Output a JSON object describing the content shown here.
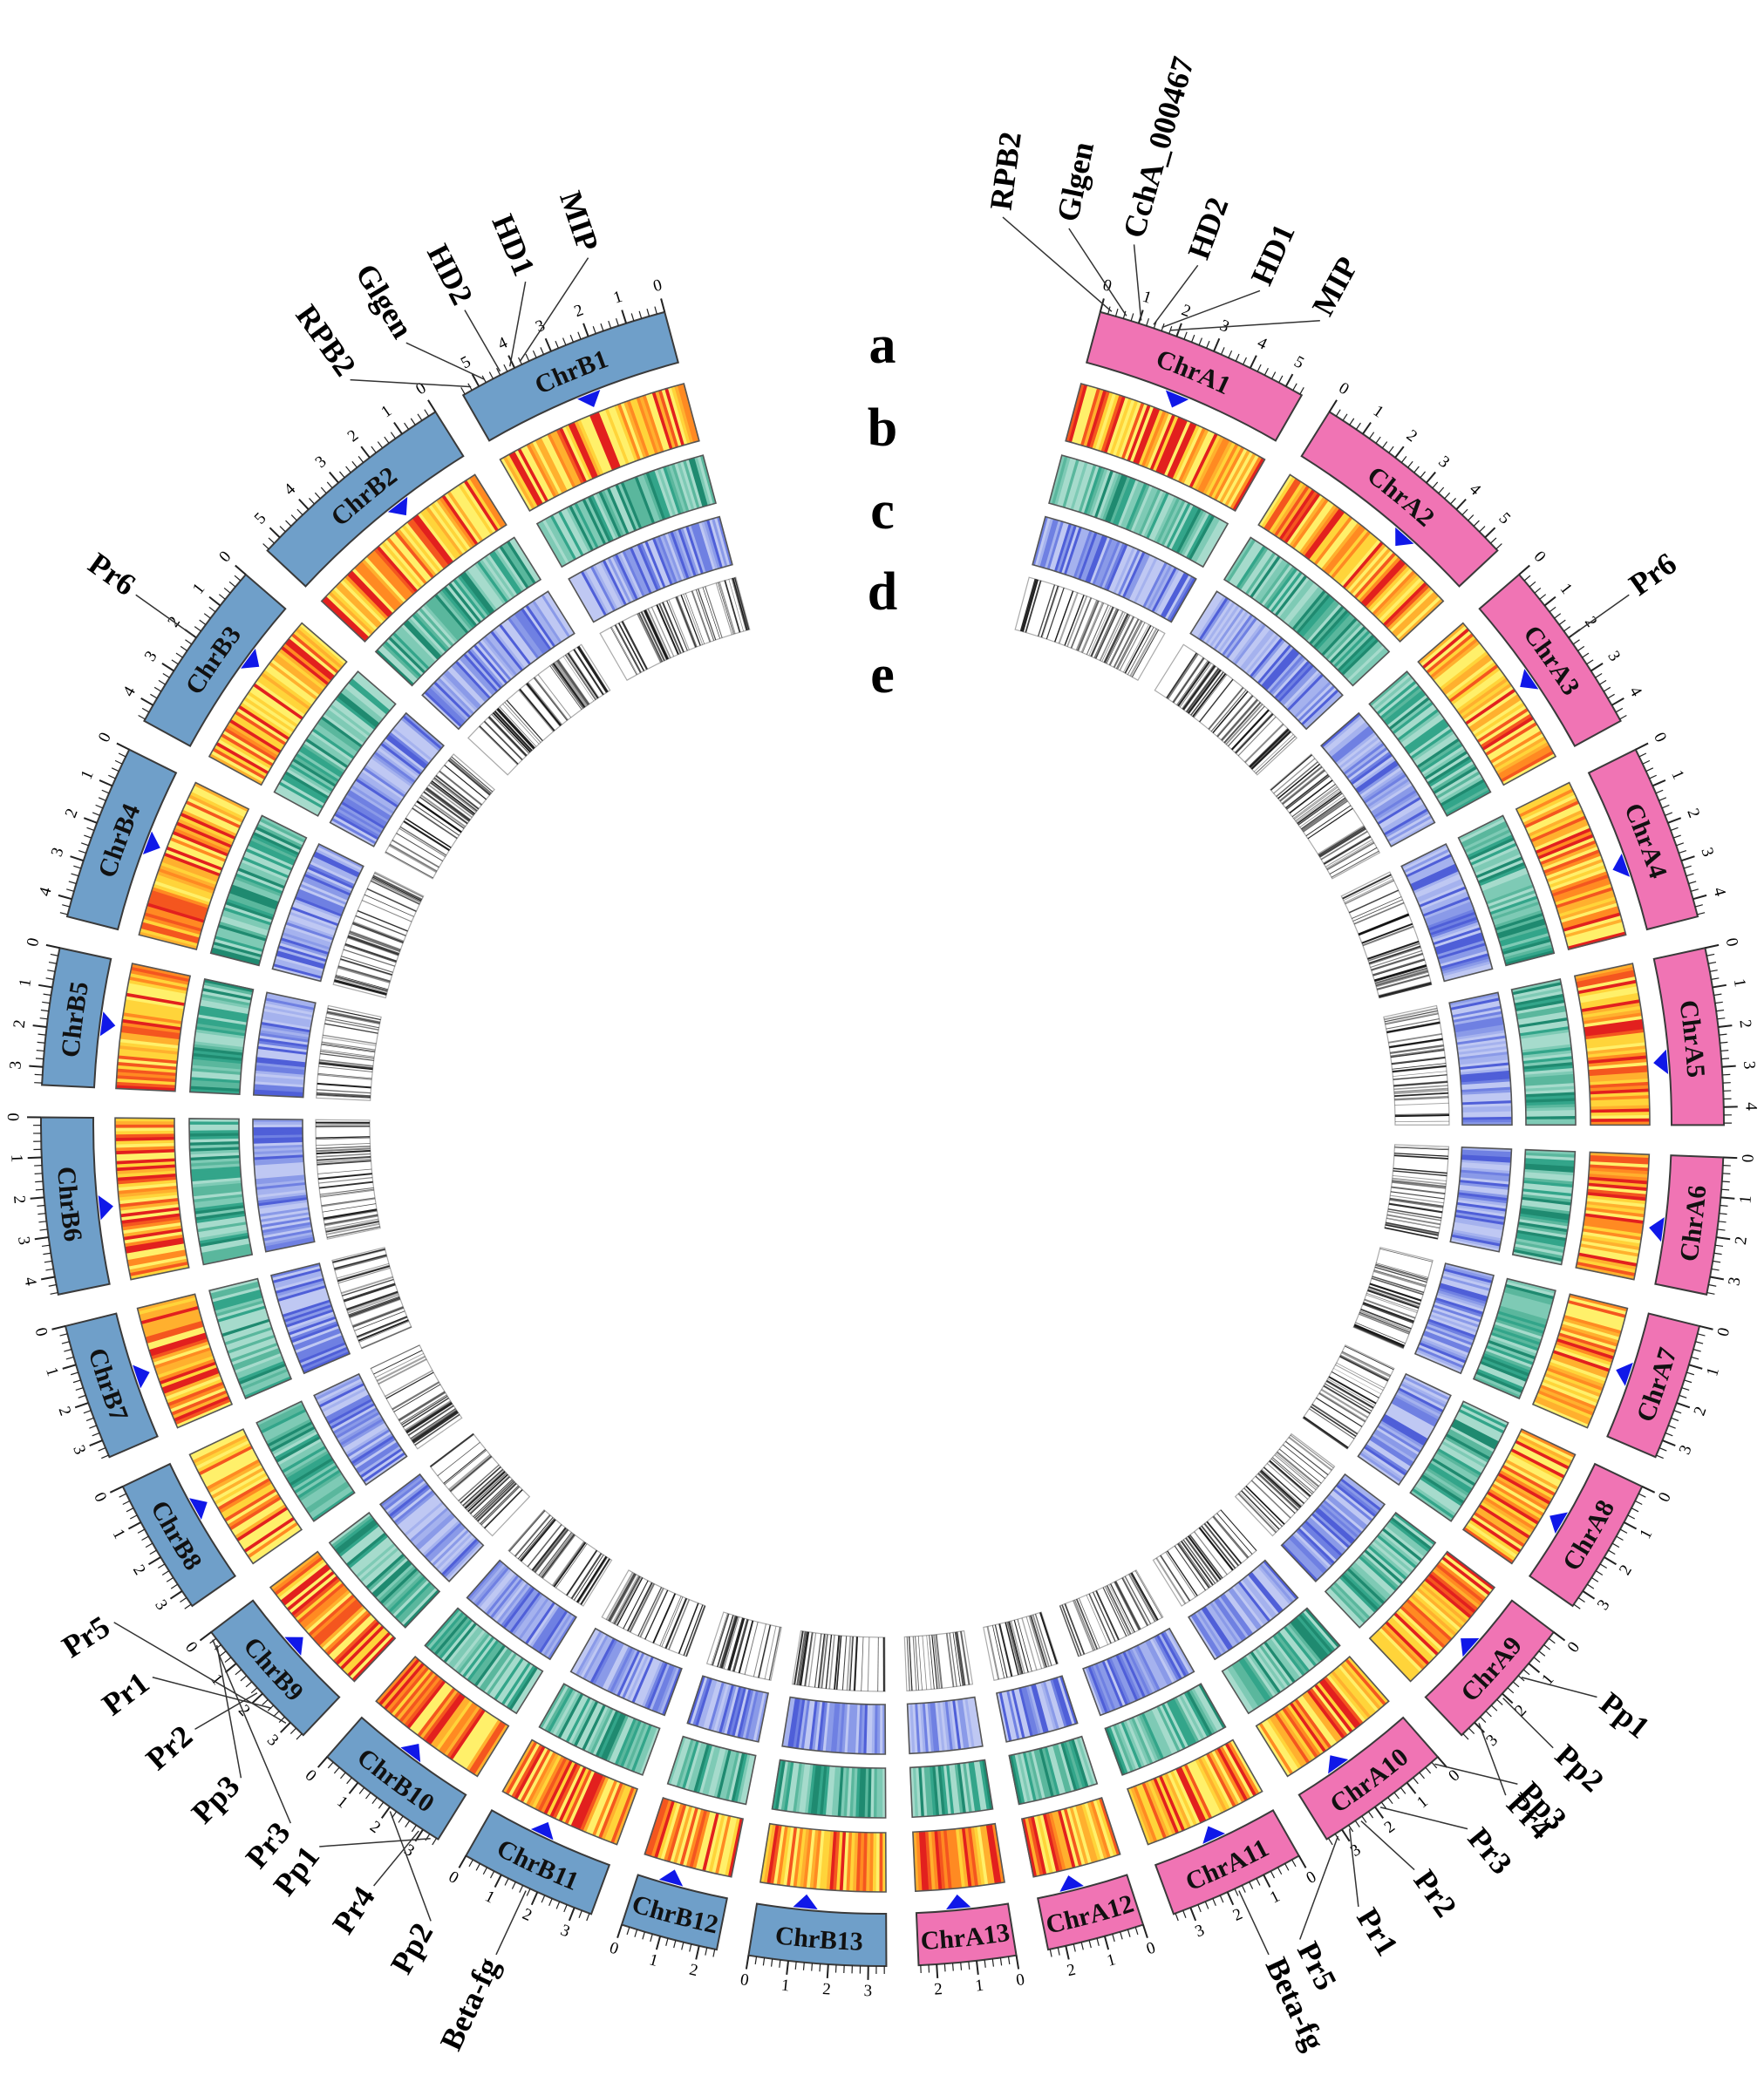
{
  "figure": {
    "description_label": "Circos plot of two subgenomes (A, B)",
    "track_letters": [
      "a",
      "b",
      "c",
      "d",
      "e"
    ],
    "colors": {
      "subgenome_A": "#f074b4",
      "subgenome_B": "#6f9fc9",
      "chr_outline": "#3a3a3a",
      "gc_track": "#33a58a",
      "gene_density_track": "#7f8fe2",
      "te_track": "#111111",
      "centromere_marker": "#1018e8",
      "heat_low": "#ffe36a",
      "heat_high": "#e2201e"
    }
  },
  "chromosomes": [
    {
      "name": "ChrA1",
      "group": "A",
      "ticks": [
        "0",
        "1",
        "2",
        "3",
        "4",
        "5"
      ]
    },
    {
      "name": "ChrA2",
      "group": "A",
      "ticks": [
        "0",
        "1",
        "2",
        "3",
        "4",
        "5"
      ]
    },
    {
      "name": "ChrA3",
      "group": "A",
      "ticks": [
        "0",
        "1",
        "2",
        "3",
        "4"
      ]
    },
    {
      "name": "ChrA4",
      "group": "A",
      "ticks": [
        "0",
        "1",
        "2",
        "3",
        "4"
      ]
    },
    {
      "name": "ChrA5",
      "group": "A",
      "ticks": [
        "0",
        "1",
        "2",
        "3",
        "4"
      ]
    },
    {
      "name": "ChrA6",
      "group": "A",
      "ticks": [
        "0",
        "1",
        "2",
        "3"
      ]
    },
    {
      "name": "ChrA7",
      "group": "A",
      "ticks": [
        "0",
        "1",
        "2",
        "3"
      ]
    },
    {
      "name": "ChrA8",
      "group": "A",
      "ticks": [
        "0",
        "1",
        "2",
        "3"
      ]
    },
    {
      "name": "ChrA9",
      "group": "A",
      "ticks": [
        "0",
        "1",
        "2",
        "3"
      ]
    },
    {
      "name": "ChrA10",
      "group": "A",
      "ticks": [
        "0",
        "1",
        "2",
        "3"
      ]
    },
    {
      "name": "ChrA11",
      "group": "A",
      "ticks": [
        "0",
        "1",
        "2",
        "3"
      ]
    },
    {
      "name": "ChrA12",
      "group": "A",
      "ticks": [
        "0",
        "1",
        "2"
      ]
    },
    {
      "name": "ChrA13",
      "group": "A",
      "ticks": [
        "0",
        "1",
        "2"
      ]
    },
    {
      "name": "ChrB13",
      "group": "B",
      "ticks": [
        "0",
        "1",
        "2",
        "3"
      ]
    },
    {
      "name": "ChrB12",
      "group": "B",
      "ticks": [
        "0",
        "1",
        "2"
      ]
    },
    {
      "name": "ChrB11",
      "group": "B",
      "ticks": [
        "0",
        "1",
        "2",
        "3"
      ]
    },
    {
      "name": "ChrB10",
      "group": "B",
      "ticks": [
        "0",
        "1",
        "2",
        "3"
      ]
    },
    {
      "name": "ChrB9",
      "group": "B",
      "ticks": [
        "0",
        "1",
        "2",
        "3"
      ]
    },
    {
      "name": "ChrB8",
      "group": "B",
      "ticks": [
        "0",
        "1",
        "2",
        "3"
      ]
    },
    {
      "name": "ChrB7",
      "group": "B",
      "ticks": [
        "0",
        "1",
        "2",
        "3"
      ]
    },
    {
      "name": "ChrB6",
      "group": "B",
      "ticks": [
        "0",
        "1",
        "2",
        "3",
        "4"
      ]
    },
    {
      "name": "ChrB5",
      "group": "B",
      "ticks": [
        "0",
        "1",
        "2",
        "3"
      ]
    },
    {
      "name": "ChrB4",
      "group": "B",
      "ticks": [
        "0",
        "1",
        "2",
        "3",
        "4"
      ]
    },
    {
      "name": "ChrB3",
      "group": "B",
      "ticks": [
        "0",
        "1",
        "2",
        "3",
        "4"
      ]
    },
    {
      "name": "ChrB2",
      "group": "B",
      "ticks": [
        "0",
        "1",
        "2",
        "3",
        "4",
        "5"
      ]
    },
    {
      "name": "ChrB1",
      "group": "B",
      "ticks": [
        "0",
        "1",
        "2",
        "3",
        "4",
        "5"
      ]
    }
  ],
  "gene_markers": [
    {
      "label": "RPB2",
      "chr": "ChrA1",
      "pos": 0.05
    },
    {
      "label": "Glgen",
      "chr": "ChrA1",
      "pos": 0.12
    },
    {
      "label": "CchA_000467",
      "chr": "ChrA1",
      "pos": 0.19
    },
    {
      "label": "HD2",
      "chr": "ChrA1",
      "pos": 0.25
    },
    {
      "label": "HD1",
      "chr": "ChrA1",
      "pos": 0.29
    },
    {
      "label": "MIP",
      "chr": "ChrA1",
      "pos": 0.33
    },
    {
      "label": "Pr6",
      "chr": "ChrA3",
      "pos": 0.45
    },
    {
      "label": "Pp1",
      "chr": "ChrA9",
      "pos": 0.4
    },
    {
      "label": "Pp2",
      "chr": "ChrA9",
      "pos": 0.6
    },
    {
      "label": "Pr4",
      "chr": "ChrA9",
      "pos": 0.85
    },
    {
      "label": "Pp3",
      "chr": "ChrA10",
      "pos": 0.05
    },
    {
      "label": "Pr3",
      "chr": "ChrA10",
      "pos": 0.55
    },
    {
      "label": "Pr2",
      "chr": "ChrA10",
      "pos": 0.72
    },
    {
      "label": "Pr1",
      "chr": "ChrA10",
      "pos": 0.82
    },
    {
      "label": "Pr5",
      "chr": "ChrA10",
      "pos": 0.92
    },
    {
      "label": "Beta-fg",
      "chr": "ChrA11",
      "pos": 0.5
    },
    {
      "label": "Beta-fg",
      "chr": "ChrB11",
      "pos": 0.5
    },
    {
      "label": "Pp2",
      "chr": "ChrB10",
      "pos": 0.4
    },
    {
      "label": "Pr4",
      "chr": "ChrB10",
      "pos": 0.15
    },
    {
      "label": "Pp1",
      "chr": "ChrB10",
      "pos": 0.05
    },
    {
      "label": "Pr3",
      "chr": "ChrB9",
      "pos": 0.95
    },
    {
      "label": "Pp3",
      "chr": "ChrB9",
      "pos": 0.9
    },
    {
      "label": "Pr2",
      "chr": "ChrB9",
      "pos": 0.45
    },
    {
      "label": "Pr1",
      "chr": "ChrB9",
      "pos": 0.3
    },
    {
      "label": "Pr5",
      "chr": "ChrB9",
      "pos": 0.15
    },
    {
      "label": "Pr6",
      "chr": "ChrB3",
      "pos": 0.55
    },
    {
      "label": "RPB2",
      "chr": "ChrB1",
      "pos": 0.05
    },
    {
      "label": "Glgen",
      "chr": "ChrB1",
      "pos": 0.12
    },
    {
      "label": "HD2",
      "chr": "ChrB1",
      "pos": 0.2
    },
    {
      "label": "HD1",
      "chr": "ChrB1",
      "pos": 0.25
    },
    {
      "label": "MIP",
      "chr": "ChrB1",
      "pos": 0.3
    }
  ]
}
